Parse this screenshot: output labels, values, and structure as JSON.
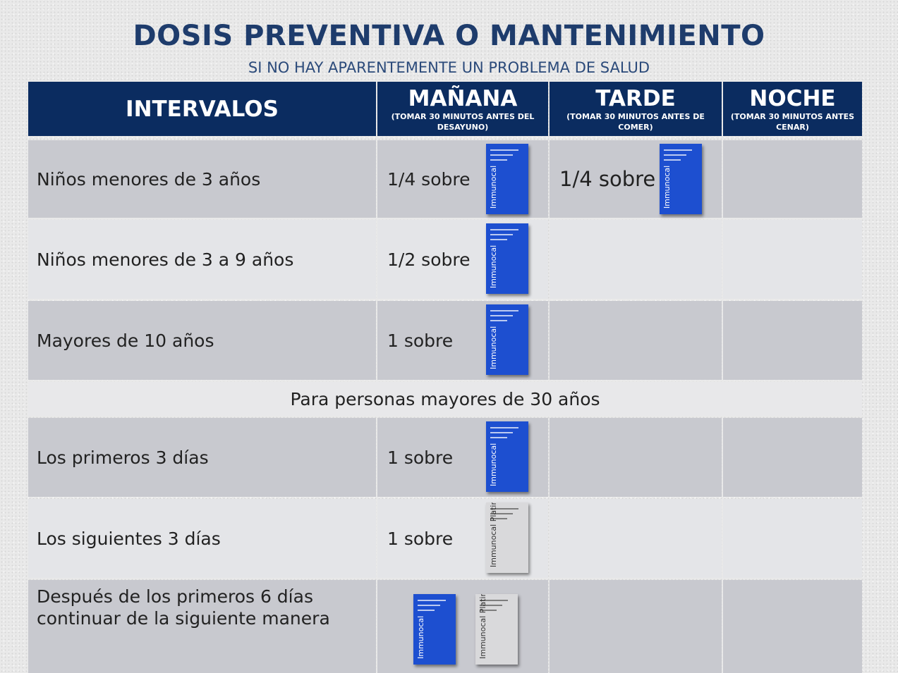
{
  "title": "DOSIS PREVENTIVA O MANTENIMIENTO",
  "subtitle": "SI NO HAY APARENTEMENTE UN PROBLEMA DE SALUD",
  "table": {
    "headers": [
      {
        "title": "INTERVALOS"
      },
      {
        "title": "MAÑANA",
        "note": "(TOMAR 30 MINUTOS ANTES DEL DESAYUNO)"
      },
      {
        "title": "TARDE",
        "note": "(TOMAR 30 MINUTOS ANTES DE COMER)"
      },
      {
        "title": "NOCHE",
        "note": "(TOMAR 30 MINUTOS ANTES CENAR)"
      }
    ],
    "rows": [
      {
        "label": "Niños menores de 3 años",
        "cells": [
          {
            "text": "1/4 sobre",
            "packets": [
              {
                "label": "Immunocal",
                "color": "#1d4fd0"
              }
            ]
          },
          {
            "text": "1/4 sobre",
            "packets": [
              {
                "label": "Immunocal",
                "color": "#1d4fd0"
              }
            ]
          },
          null
        ]
      },
      {
        "label": "Niños menores de 3 a 9 años",
        "cells": [
          {
            "text": "1/2 sobre",
            "packets": [
              {
                "label": "Immunocal",
                "color": "#1d4fd0"
              }
            ]
          },
          null,
          null
        ]
      },
      {
        "label": "Mayores de 10 años",
        "cells": [
          {
            "text": "1 sobre",
            "packets": [
              {
                "label": "Immunocal",
                "color": "#1d4fd0"
              }
            ]
          },
          null,
          null
        ]
      },
      {
        "section": "Para personas mayores de 30 años"
      },
      {
        "label": "Los primeros 3 días",
        "cells": [
          {
            "text": "1 sobre",
            "packets": [
              {
                "label": "Immunocal",
                "color": "#1d4fd0"
              }
            ]
          },
          null,
          null
        ]
      },
      {
        "label": "Los siguientes 3 días",
        "cells": [
          {
            "text": "1 sobre",
            "packets": [
              {
                "label": "Immunocal Platinum",
                "color": "#d9d9db"
              }
            ]
          },
          null,
          null
        ]
      },
      {
        "label": [
          "Después de los primeros 6 días",
          "continuar de la siguiente manera"
        ],
        "cells": [
          {
            "packets": [
              {
                "label": "Immunocal",
                "color": "#1d4fd0"
              },
              {
                "label": "Immunocal Platinum",
                "color": "#d9d9db"
              }
            ]
          },
          null,
          null
        ]
      }
    ]
  }
}
